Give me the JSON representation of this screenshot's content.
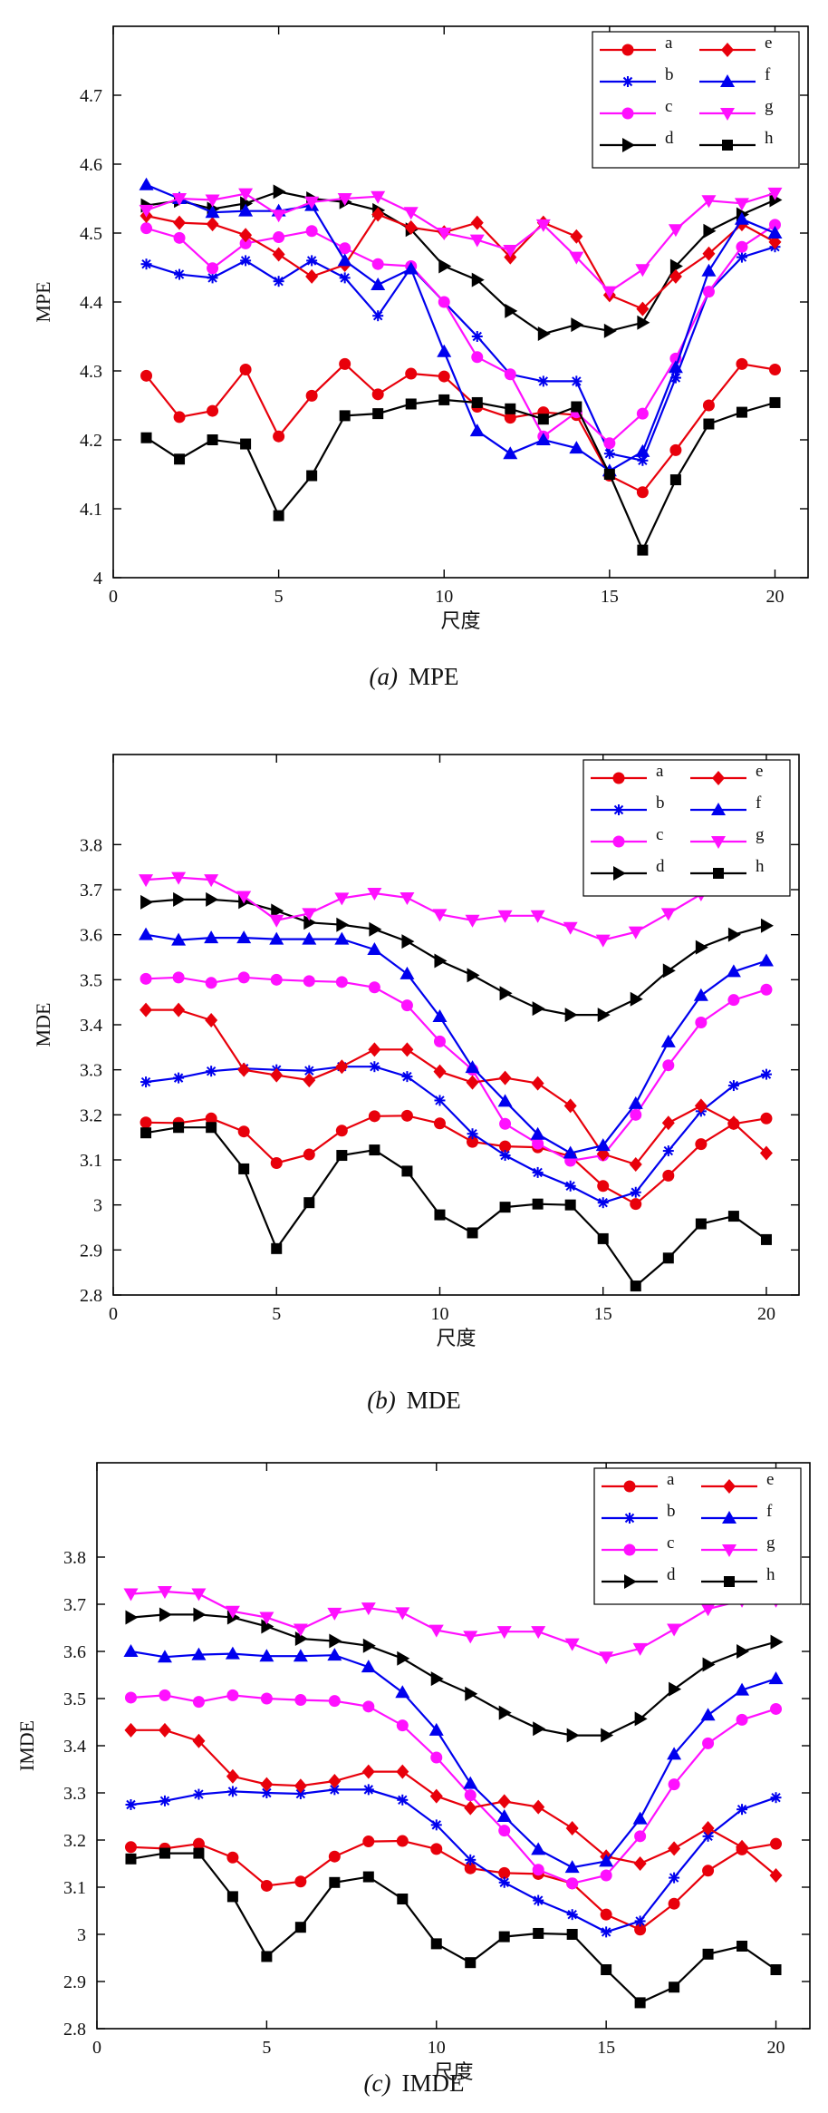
{
  "colors": {
    "red": "#e8000b",
    "blue": "#0000ee",
    "magenta": "#ff10ff",
    "black": "#000000"
  },
  "legend": [
    {
      "key": "a",
      "color": "#e8000b",
      "marker": "circle"
    },
    {
      "key": "e",
      "color": "#e8000b",
      "marker": "diamond"
    },
    {
      "key": "b",
      "color": "#0000ee",
      "marker": "star"
    },
    {
      "key": "f",
      "color": "#0000ee",
      "marker": "triangle-up"
    },
    {
      "key": "c",
      "color": "#ff10ff",
      "marker": "circle"
    },
    {
      "key": "g",
      "color": "#ff10ff",
      "marker": "triangle-down"
    },
    {
      "key": "d",
      "color": "#000000",
      "marker": "triangle-right"
    },
    {
      "key": "h",
      "color": "#000000",
      "marker": "square"
    }
  ],
  "chart_data": [
    {
      "type": "line",
      "caption_var": "(a)",
      "caption_text": "MPE",
      "xlabel": "尺度",
      "ylabel": "MPE",
      "xlim": [
        0,
        21
      ],
      "ylim": [
        4.0,
        4.8
      ],
      "xticks": [
        0,
        5,
        10,
        15,
        20
      ],
      "yticks": [
        4,
        4.1,
        4.2,
        4.3,
        4.4,
        4.5,
        4.6,
        4.7
      ],
      "ytick_labels": [
        "4",
        "4.1",
        "4.2",
        "4.3",
        "4.4",
        "4.5",
        "4.6",
        "4.7"
      ],
      "legend_position": "top-right",
      "x": [
        1,
        2,
        3,
        4,
        5,
        6,
        7,
        8,
        9,
        10,
        11,
        12,
        13,
        14,
        15,
        16,
        17,
        18,
        19,
        20
      ],
      "series": [
        {
          "name": "a",
          "color": "#e8000b",
          "marker": "circle",
          "values": [
            4.293,
            4.233,
            4.242,
            4.302,
            4.205,
            4.264,
            4.31,
            4.266,
            4.296,
            4.292,
            4.248,
            4.232,
            4.24,
            4.236,
            4.148,
            4.124,
            4.185,
            4.25,
            4.31,
            4.302
          ]
        },
        {
          "name": "b",
          "color": "#0000ee",
          "marker": "star",
          "values": [
            4.455,
            4.44,
            4.435,
            4.46,
            4.43,
            4.46,
            4.435,
            4.38,
            4.45,
            4.4,
            4.35,
            4.295,
            4.285,
            4.285,
            4.18,
            4.17,
            4.29,
            4.415,
            4.465,
            4.48
          ]
        },
        {
          "name": "c",
          "color": "#ff10ff",
          "marker": "circle",
          "values": [
            4.507,
            4.493,
            4.449,
            4.485,
            4.494,
            4.503,
            4.478,
            4.455,
            4.452,
            4.4,
            4.32,
            4.295,
            4.205,
            4.24,
            4.195,
            4.238,
            4.318,
            4.415,
            4.48,
            4.512
          ]
        },
        {
          "name": "d",
          "color": "#000000",
          "marker": "triangle-right",
          "values": [
            4.54,
            4.547,
            4.535,
            4.543,
            4.56,
            4.55,
            4.545,
            4.533,
            4.505,
            4.452,
            4.432,
            4.387,
            4.354,
            4.367,
            4.358,
            4.37,
            4.452,
            4.503,
            4.527,
            4.548
          ]
        },
        {
          "name": "e",
          "color": "#e8000b",
          "marker": "diamond",
          "values": [
            4.525,
            4.515,
            4.513,
            4.497,
            4.469,
            4.437,
            4.454,
            4.527,
            4.508,
            4.501,
            4.515,
            4.465,
            4.515,
            4.495,
            4.41,
            4.39,
            4.437,
            4.47,
            4.513,
            4.487
          ]
        },
        {
          "name": "f",
          "color": "#0000ee",
          "marker": "triangle-up",
          "values": [
            4.57,
            4.55,
            4.53,
            4.532,
            4.532,
            4.54,
            4.46,
            4.425,
            4.448,
            4.328,
            4.213,
            4.18,
            4.2,
            4.188,
            4.155,
            4.183,
            4.305,
            4.445,
            4.52,
            4.5
          ]
        },
        {
          "name": "g",
          "color": "#ff10ff",
          "marker": "triangle-down",
          "values": [
            4.533,
            4.55,
            4.548,
            4.557,
            4.526,
            4.545,
            4.55,
            4.553,
            4.53,
            4.5,
            4.49,
            4.475,
            4.512,
            4.465,
            4.415,
            4.447,
            4.505,
            4.547,
            4.543,
            4.558
          ]
        },
        {
          "name": "h",
          "color": "#000000",
          "marker": "square",
          "values": [
            4.203,
            4.172,
            4.2,
            4.194,
            4.09,
            4.148,
            4.235,
            4.238,
            4.252,
            4.258,
            4.254,
            4.245,
            4.23,
            4.248,
            4.15,
            4.04,
            4.142,
            4.223,
            4.24,
            4.254
          ]
        }
      ]
    },
    {
      "type": "line",
      "caption_var": "(b)",
      "caption_text": "MDE",
      "xlabel": "尺度",
      "ylabel": "MDE",
      "xlim": [
        0,
        21
      ],
      "ylim": [
        2.8,
        4.0
      ],
      "xticks": [
        0,
        5,
        10,
        15,
        20
      ],
      "yticks": [
        2.8,
        2.9,
        3.0,
        3.1,
        3.2,
        3.3,
        3.4,
        3.5,
        3.6,
        3.7,
        3.8
      ],
      "ytick_labels": [
        "2.8",
        "2.9",
        "3",
        "3.1",
        "3.2",
        "3.3",
        "3.4",
        "3.5",
        "3.6",
        "3.7",
        "3.8"
      ],
      "legend_position": "top-right",
      "x": [
        1,
        2,
        3,
        4,
        5,
        6,
        7,
        8,
        9,
        10,
        11,
        12,
        13,
        14,
        15,
        16,
        17,
        18,
        19,
        20
      ],
      "series": [
        {
          "name": "a",
          "color": "#e8000b",
          "marker": "circle",
          "values": [
            3.183,
            3.182,
            3.192,
            3.163,
            3.093,
            3.112,
            3.165,
            3.197,
            3.198,
            3.181,
            3.14,
            3.13,
            3.128,
            3.108,
            3.042,
            3.002,
            3.065,
            3.135,
            3.18,
            3.192
          ]
        },
        {
          "name": "b",
          "color": "#0000ee",
          "marker": "star",
          "values": [
            3.273,
            3.282,
            3.297,
            3.303,
            3.3,
            3.298,
            3.307,
            3.307,
            3.285,
            3.232,
            3.158,
            3.11,
            3.072,
            3.042,
            3.005,
            3.028,
            3.12,
            3.208,
            3.265,
            3.29
          ]
        },
        {
          "name": "c",
          "color": "#ff10ff",
          "marker": "circle",
          "values": [
            3.502,
            3.505,
            3.493,
            3.505,
            3.5,
            3.497,
            3.495,
            3.483,
            3.443,
            3.363,
            3.3,
            3.18,
            3.136,
            3.098,
            3.11,
            3.2,
            3.31,
            3.405,
            3.455,
            3.478
          ]
        },
        {
          "name": "d",
          "color": "#000000",
          "marker": "triangle-right",
          "values": [
            3.672,
            3.678,
            3.678,
            3.673,
            3.653,
            3.627,
            3.622,
            3.612,
            3.585,
            3.542,
            3.51,
            3.47,
            3.436,
            3.422,
            3.422,
            3.457,
            3.52,
            3.572,
            3.6,
            3.62
          ]
        },
        {
          "name": "e",
          "color": "#e8000b",
          "marker": "diamond",
          "values": [
            3.433,
            3.433,
            3.41,
            3.3,
            3.288,
            3.277,
            3.307,
            3.345,
            3.345,
            3.296,
            3.272,
            3.282,
            3.27,
            3.22,
            3.113,
            3.09,
            3.182,
            3.22,
            3.182,
            3.115
          ]
        },
        {
          "name": "f",
          "color": "#0000ee",
          "marker": "triangle-up",
          "values": [
            3.6,
            3.588,
            3.593,
            3.593,
            3.59,
            3.59,
            3.59,
            3.567,
            3.513,
            3.418,
            3.305,
            3.23,
            3.157,
            3.115,
            3.132,
            3.225,
            3.362,
            3.465,
            3.518,
            3.542
          ]
        },
        {
          "name": "g",
          "color": "#ff10ff",
          "marker": "triangle-down",
          "values": [
            3.722,
            3.727,
            3.722,
            3.685,
            3.632,
            3.647,
            3.681,
            3.692,
            3.682,
            3.645,
            3.632,
            3.642,
            3.642,
            3.616,
            3.588,
            3.606,
            3.647,
            3.69,
            3.708,
            3.708
          ]
        },
        {
          "name": "h",
          "color": "#000000",
          "marker": "square",
          "values": [
            3.16,
            3.172,
            3.172,
            3.08,
            2.903,
            3.005,
            3.11,
            3.122,
            3.075,
            2.978,
            2.938,
            2.995,
            3.002,
            3.0,
            2.925,
            2.82,
            2.882,
            2.958,
            2.975,
            2.923
          ]
        }
      ]
    },
    {
      "type": "line",
      "caption_var": "(c)",
      "caption_text": "IMDE",
      "xlabel": "尺度",
      "ylabel": "IMDE",
      "xlim": [
        0,
        21
      ],
      "ylim": [
        2.8,
        4.0
      ],
      "xticks": [
        0,
        5,
        10,
        15,
        20
      ],
      "yticks": [
        2.8,
        2.9,
        3.0,
        3.1,
        3.2,
        3.3,
        3.4,
        3.5,
        3.6,
        3.7,
        3.8
      ],
      "ytick_labels": [
        "2.8",
        "2.9",
        "3",
        "3.1",
        "3.2",
        "3.3",
        "3.4",
        "3.5",
        "3.6",
        "3.7",
        "3.8"
      ],
      "legend_position": "top-right",
      "x": [
        1,
        2,
        3,
        4,
        5,
        6,
        7,
        8,
        9,
        10,
        11,
        12,
        13,
        14,
        15,
        16,
        17,
        18,
        19,
        20
      ],
      "series": [
        {
          "name": "a",
          "color": "#e8000b",
          "marker": "circle",
          "values": [
            3.185,
            3.182,
            3.192,
            3.163,
            3.103,
            3.112,
            3.165,
            3.197,
            3.198,
            3.181,
            3.14,
            3.13,
            3.128,
            3.108,
            3.042,
            3.01,
            3.065,
            3.135,
            3.18,
            3.192
          ]
        },
        {
          "name": "b",
          "color": "#0000ee",
          "marker": "star",
          "values": [
            3.275,
            3.283,
            3.297,
            3.303,
            3.3,
            3.298,
            3.307,
            3.307,
            3.285,
            3.232,
            3.158,
            3.11,
            3.072,
            3.042,
            3.005,
            3.028,
            3.12,
            3.208,
            3.265,
            3.29
          ]
        },
        {
          "name": "c",
          "color": "#ff10ff",
          "marker": "circle",
          "values": [
            3.502,
            3.507,
            3.493,
            3.507,
            3.5,
            3.497,
            3.495,
            3.483,
            3.443,
            3.375,
            3.295,
            3.22,
            3.137,
            3.108,
            3.125,
            3.208,
            3.318,
            3.405,
            3.455,
            3.478
          ]
        },
        {
          "name": "d",
          "color": "#000000",
          "marker": "triangle-right",
          "values": [
            3.672,
            3.678,
            3.678,
            3.672,
            3.653,
            3.627,
            3.622,
            3.612,
            3.585,
            3.542,
            3.51,
            3.47,
            3.436,
            3.422,
            3.422,
            3.457,
            3.52,
            3.572,
            3.6,
            3.62
          ]
        },
        {
          "name": "e",
          "color": "#e8000b",
          "marker": "diamond",
          "values": [
            3.433,
            3.433,
            3.41,
            3.335,
            3.318,
            3.315,
            3.325,
            3.345,
            3.345,
            3.293,
            3.268,
            3.282,
            3.27,
            3.225,
            3.165,
            3.15,
            3.182,
            3.225,
            3.185,
            3.125
          ]
        },
        {
          "name": "f",
          "color": "#0000ee",
          "marker": "triangle-up",
          "values": [
            3.6,
            3.588,
            3.593,
            3.595,
            3.59,
            3.59,
            3.592,
            3.567,
            3.513,
            3.433,
            3.32,
            3.25,
            3.18,
            3.142,
            3.155,
            3.245,
            3.382,
            3.465,
            3.518,
            3.542
          ]
        },
        {
          "name": "g",
          "color": "#ff10ff",
          "marker": "triangle-down",
          "values": [
            3.722,
            3.727,
            3.722,
            3.685,
            3.672,
            3.647,
            3.681,
            3.692,
            3.682,
            3.645,
            3.632,
            3.642,
            3.642,
            3.616,
            3.588,
            3.606,
            3.647,
            3.69,
            3.708,
            3.708
          ]
        },
        {
          "name": "h",
          "color": "#000000",
          "marker": "square",
          "values": [
            3.16,
            3.172,
            3.172,
            3.08,
            2.953,
            3.015,
            3.11,
            3.122,
            3.075,
            2.98,
            2.94,
            2.995,
            3.002,
            3.0,
            2.925,
            2.855,
            2.888,
            2.958,
            2.975,
            2.925
          ]
        }
      ]
    }
  ]
}
